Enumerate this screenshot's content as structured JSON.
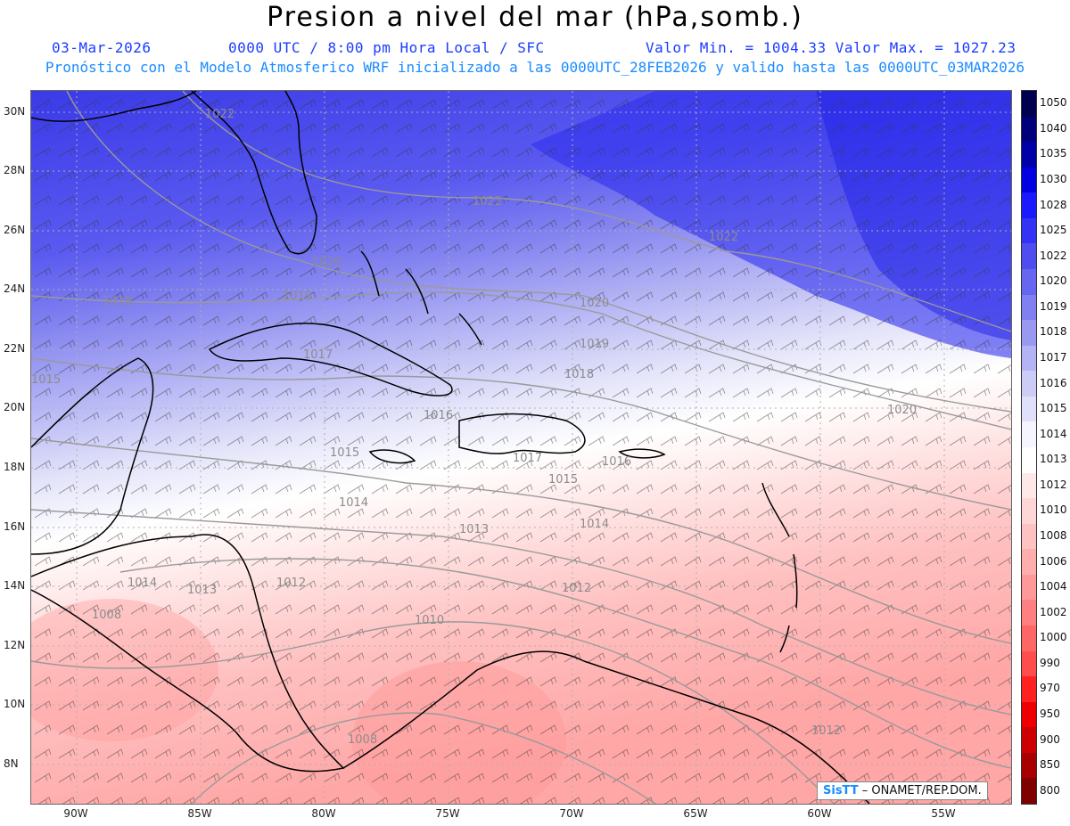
{
  "header": {
    "title": "Presion a nivel del mar (hPa,somb.)",
    "date": "03-Mar-2026",
    "time_info": "0000 UTC / 8:00 pm Hora Local / SFC",
    "min_max": "Valor Min. = 1004.33  Valor Max. = 1027.23",
    "forecast_info": "Pronóstico con el Modelo Atmosferico WRF inicializado a las 0000UTC_28FEB2026 y valido hasta las  0000UTC_03MAR2026"
  },
  "map": {
    "lat_labels": [
      "30N",
      "28N",
      "26N",
      "24N",
      "22N",
      "20N",
      "18N",
      "16N",
      "14N",
      "12N",
      "10N",
      "8N"
    ],
    "lon_labels": [
      "90W",
      "85W",
      "80W",
      "75W",
      "70W",
      "65W",
      "60W",
      "55W"
    ],
    "isobar_labels": [
      {
        "id": "i1",
        "text": "1022"
      },
      {
        "id": "i2",
        "text": "1022"
      },
      {
        "id": "i3",
        "text": "1022"
      },
      {
        "id": "i4",
        "text": "1020"
      },
      {
        "id": "i5",
        "text": "1020"
      },
      {
        "id": "i6",
        "text": "1020"
      },
      {
        "id": "i7",
        "text": "1019"
      },
      {
        "id": "i8",
        "text": "1019"
      },
      {
        "id": "i9",
        "text": "1018"
      },
      {
        "id": "i10",
        "text": "1018"
      },
      {
        "id": "i11",
        "text": "1017"
      },
      {
        "id": "i12",
        "text": "1017"
      },
      {
        "id": "i13",
        "text": "1016"
      },
      {
        "id": "i14",
        "text": "1016"
      },
      {
        "id": "i15",
        "text": "1015"
      },
      {
        "id": "i16",
        "text": "1015"
      },
      {
        "id": "i17",
        "text": "1015"
      },
      {
        "id": "i18",
        "text": "1014"
      },
      {
        "id": "i19",
        "text": "1014"
      },
      {
        "id": "i20",
        "text": "1014"
      },
      {
        "id": "i21",
        "text": "1013"
      },
      {
        "id": "i22",
        "text": "1013"
      },
      {
        "id": "i23",
        "text": "1012"
      },
      {
        "id": "i24",
        "text": "1012"
      },
      {
        "id": "i25",
        "text": "1012"
      },
      {
        "id": "i26",
        "text": "1010"
      },
      {
        "id": "i27",
        "text": "1008"
      },
      {
        "id": "i28",
        "text": "1008"
      }
    ]
  },
  "colorbar": {
    "levels": [
      "1050",
      "1040",
      "1035",
      "1030",
      "1028",
      "1025",
      "1022",
      "1020",
      "1019",
      "1018",
      "1017",
      "1016",
      "1015",
      "1014",
      "1013",
      "1012",
      "1010",
      "1008",
      "1006",
      "1004",
      "1002",
      "1000",
      "990",
      "970",
      "950",
      "900",
      "850",
      "800"
    ],
    "colors": [
      "#000050",
      "#00007a",
      "#0000a8",
      "#0000e0",
      "#1a1aff",
      "#3333f5",
      "#4d4df0",
      "#6666f0",
      "#8080f0",
      "#9999f2",
      "#b3b3f5",
      "#ccccf7",
      "#e0e0fa",
      "#f5f5ff",
      "#ffffff",
      "#ffe8e8",
      "#ffd6d6",
      "#ffc2c2",
      "#ffadad",
      "#ff9999",
      "#ff8080",
      "#ff6666",
      "#ff4d4d",
      "#ff2020",
      "#ee0000",
      "#cc0000",
      "#a80000",
      "#800000"
    ]
  },
  "credit": {
    "brand": "SisTT",
    "text": "– ONAMET/REP.DOM."
  }
}
